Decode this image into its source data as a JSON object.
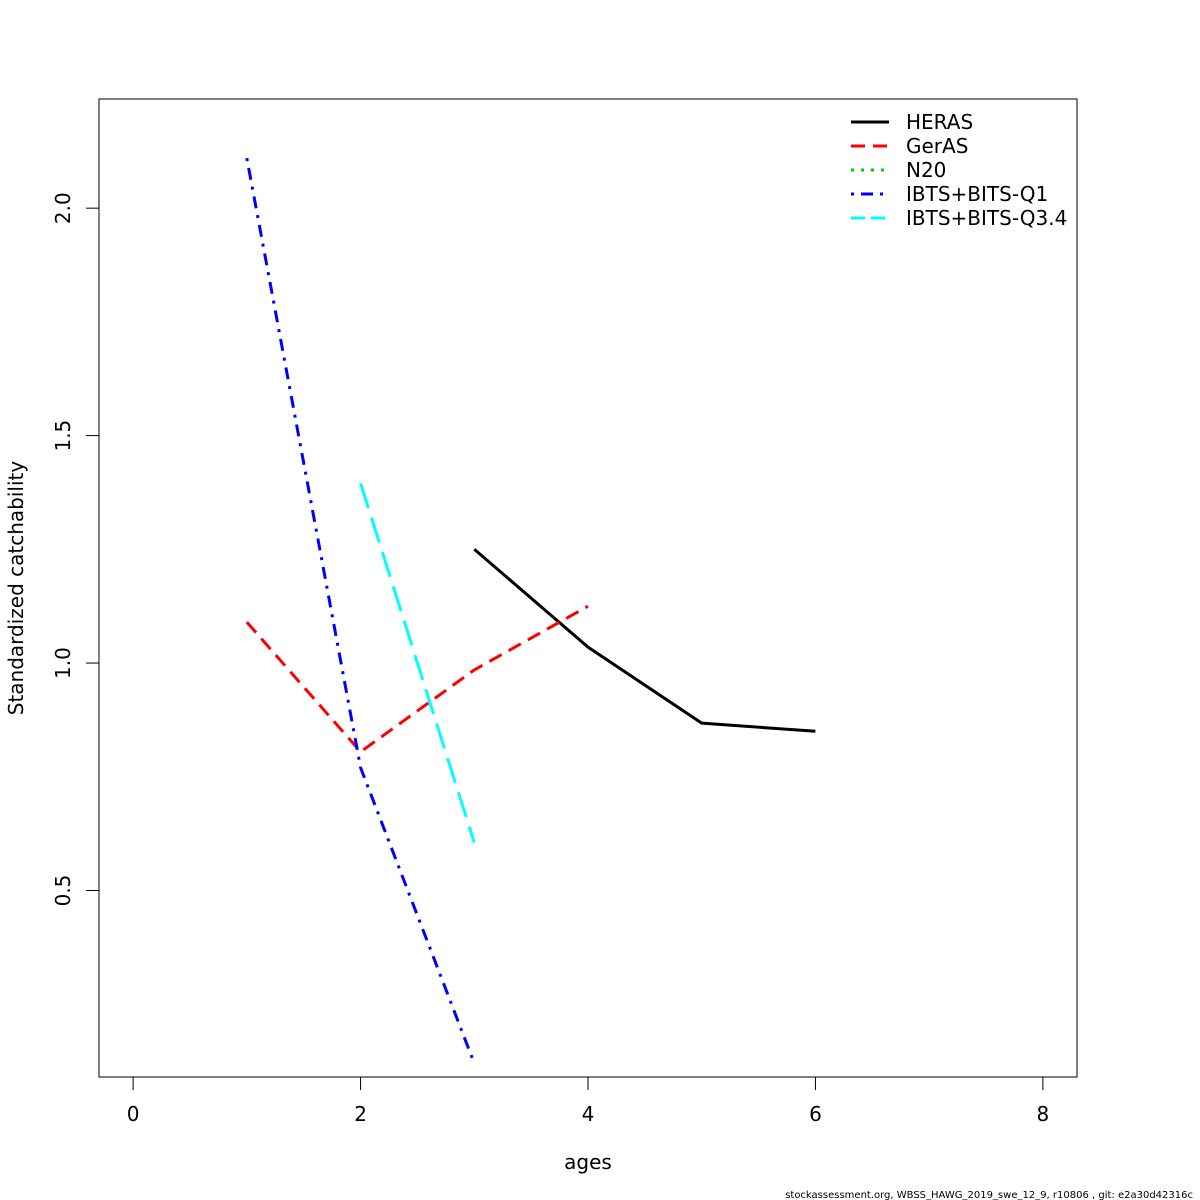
{
  "chart_data": {
    "type": "line",
    "xlabel": "ages",
    "ylabel": "Standardized catchability",
    "xlim": [
      -0.3,
      8.3
    ],
    "ylim": [
      0.09,
      2.24
    ],
    "xticks": [
      0,
      2,
      4,
      6,
      8
    ],
    "yticks": [
      0.5,
      1.0,
      1.5,
      2.0
    ],
    "ytick_labels": [
      "0.5",
      "1.0",
      "1.5",
      "2.0"
    ],
    "grid": false,
    "legend_position": "top-right",
    "series": [
      {
        "name": "HERAS",
        "color": "#000000",
        "dash": "solid",
        "x": [
          3,
          4,
          5,
          6
        ],
        "y": [
          1.25,
          1.035,
          0.868,
          0.85
        ]
      },
      {
        "name": "GerAS",
        "color": "#ff0000",
        "dash": "dashed",
        "x": [
          1,
          2,
          3,
          4
        ],
        "y": [
          1.09,
          0.805,
          0.985,
          1.125
        ]
      },
      {
        "name": "N20",
        "color": "#00cd00",
        "dash": "dotted",
        "x": [],
        "y": []
      },
      {
        "name": "IBTS+BITS-Q1",
        "color": "#0000ff",
        "dash": "dotdash",
        "x": [
          1,
          2,
          3
        ],
        "y": [
          2.11,
          0.77,
          0.12
        ]
      },
      {
        "name": "IBTS+BITS-Q3.4",
        "color": "#00ffff",
        "dash": "longdash",
        "x": [
          2,
          3
        ],
        "y": [
          1.395,
          0.605
        ]
      }
    ]
  },
  "footer": "stockassessment.org, WBSS_HAWG_2019_swe_12_9, r10806 , git: e2a30d42316c"
}
